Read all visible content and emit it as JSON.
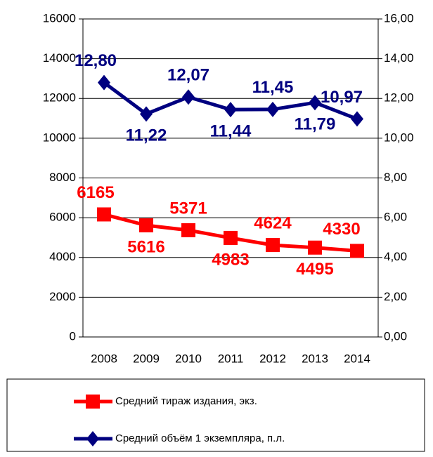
{
  "chart_data": {
    "type": "line",
    "categories": [
      "2008",
      "2009",
      "2010",
      "2011",
      "2012",
      "2013",
      "2014"
    ],
    "series": [
      {
        "name": "Средний тираж издания, экз.",
        "color": "#ff0000",
        "marker": "square",
        "values": [
          6165,
          5616,
          5371,
          4983,
          4624,
          4495,
          4330
        ]
      },
      {
        "name": "Средний объём 1 экземпляра, п.л.",
        "color": "#000080",
        "marker": "diamond",
        "axis": "y2",
        "values": [
          12.8,
          11.22,
          12.07,
          11.44,
          11.45,
          11.79,
          10.97
        ],
        "value_labels": [
          "12,80",
          "11,22",
          "12,07",
          "11,44",
          "11,45",
          "11,79",
          "10,97"
        ]
      }
    ],
    "ylim": [
      0,
      16000
    ],
    "yticks": [
      0,
      2000,
      4000,
      6000,
      8000,
      10000,
      12000,
      14000,
      16000
    ],
    "y2lim": [
      0,
      16
    ],
    "y2ticks": [
      {
        "value": 0,
        "label": "0,00"
      },
      {
        "value": 2,
        "label": "2,00"
      },
      {
        "value": 4,
        "label": "4,00"
      },
      {
        "value": 6,
        "label": "6,00"
      },
      {
        "value": 8,
        "label": "8,00"
      },
      {
        "value": 10,
        "label": "10,00"
      },
      {
        "value": 12,
        "label": "12,00"
      },
      {
        "value": 14,
        "label": "14,00"
      },
      {
        "value": 16,
        "label": "16,00"
      }
    ],
    "grid": true,
    "legend": "bottom"
  }
}
